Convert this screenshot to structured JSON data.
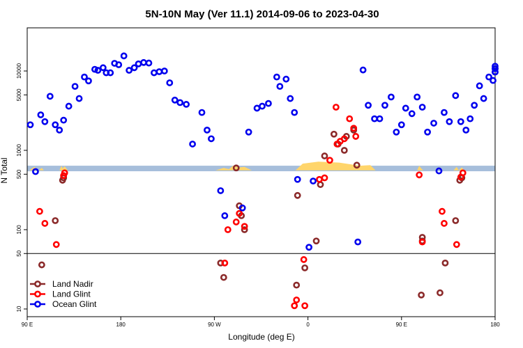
{
  "chart_data": {
    "type": "scatter",
    "title": "5N-10N May (Ver 11.1)   2014-09-06 to 2023-04-30",
    "xlabel": "Longitude (deg E)",
    "ylabel": "N Total",
    "x_ticks": [
      {
        "value": 90,
        "label": "90 E"
      },
      {
        "value": 180,
        "label": "180"
      },
      {
        "value": 270,
        "label": "90 W"
      },
      {
        "value": 360,
        "label": "0"
      },
      {
        "value": 450,
        "label": "90 E"
      },
      {
        "value": 540,
        "label": "180"
      }
    ],
    "y_ticks": [
      10,
      50,
      100,
      500,
      1000,
      5000,
      10000
    ],
    "xlim": [
      90,
      540
    ],
    "ylim_log": [
      8,
      35000
    ],
    "reference_line_y": 50,
    "land_band_y": [
      545,
      640
    ],
    "grid": false,
    "legend_placement": "bottom-left",
    "colors": {
      "land_nadir": "#8b2a2a",
      "land_glint": "#ff0000",
      "ocean_glint": "#0000ee",
      "ocean_band": "#a6bedb",
      "land_fill": "#ffd56b"
    },
    "series": [
      {
        "name": "Land Nadir",
        "color": "#8b2a2a",
        "points": [
          [
            104,
            36
          ],
          [
            117,
            130
          ],
          [
            124,
            420
          ],
          [
            125,
            450
          ],
          [
            276,
            38
          ],
          [
            279,
            25
          ],
          [
            291,
            600
          ],
          [
            294,
            200
          ],
          [
            296,
            150
          ],
          [
            299,
            100
          ],
          [
            349,
            20
          ],
          [
            350,
            270
          ],
          [
            357,
            33
          ],
          [
            368,
            72
          ],
          [
            372,
            370
          ],
          [
            376,
            850
          ],
          [
            385,
            1600
          ],
          [
            389,
            1200
          ],
          [
            395,
            1000
          ],
          [
            397,
            1500
          ],
          [
            404,
            1800
          ],
          [
            407,
            650
          ],
          [
            469,
            15
          ],
          [
            470,
            72
          ],
          [
            470,
            80
          ],
          [
            487,
            16
          ],
          [
            492,
            38
          ],
          [
            502,
            130
          ],
          [
            506,
            420
          ],
          [
            508,
            450
          ]
        ]
      },
      {
        "name": "Land Glint",
        "color": "#ff0000",
        "points": [
          [
            102,
            170
          ],
          [
            107,
            120
          ],
          [
            118,
            65
          ],
          [
            125,
            480
          ],
          [
            126,
            520
          ],
          [
            280,
            38
          ],
          [
            283,
            100
          ],
          [
            291,
            125
          ],
          [
            294,
            160
          ],
          [
            299,
            110
          ],
          [
            347,
            11
          ],
          [
            349,
            13
          ],
          [
            356,
            42
          ],
          [
            357,
            11
          ],
          [
            371,
            430
          ],
          [
            376,
            450
          ],
          [
            381,
            750
          ],
          [
            387,
            3500
          ],
          [
            388,
            1200
          ],
          [
            391,
            1300
          ],
          [
            395,
            1400
          ],
          [
            400,
            2500
          ],
          [
            404,
            1900
          ],
          [
            406,
            1500
          ],
          [
            467,
            490
          ],
          [
            470,
            70
          ],
          [
            489,
            170
          ],
          [
            491,
            120
          ],
          [
            503,
            65
          ],
          [
            507,
            460
          ],
          [
            509,
            520
          ]
        ]
      },
      {
        "name": "Ocean Glint",
        "color": "#0000ee",
        "points": [
          [
            93,
            2100
          ],
          [
            98,
            540
          ],
          [
            103,
            2800
          ],
          [
            107,
            2300
          ],
          [
            112,
            4800
          ],
          [
            117,
            2100
          ],
          [
            121,
            1800
          ],
          [
            125,
            2400
          ],
          [
            130,
            3600
          ],
          [
            136,
            6400
          ],
          [
            140,
            4500
          ],
          [
            145,
            8400
          ],
          [
            149,
            7500
          ],
          [
            155,
            10500
          ],
          [
            158,
            10200
          ],
          [
            163,
            11000
          ],
          [
            166,
            9500
          ],
          [
            170,
            9500
          ],
          [
            174,
            12500
          ],
          [
            178,
            12000
          ],
          [
            183,
            15500
          ],
          [
            188,
            10200
          ],
          [
            193,
            11000
          ],
          [
            197,
            12300
          ],
          [
            202,
            12800
          ],
          [
            207,
            12600
          ],
          [
            212,
            9500
          ],
          [
            217,
            9800
          ],
          [
            222,
            10000
          ],
          [
            227,
            7100
          ],
          [
            232,
            4300
          ],
          [
            237,
            4000
          ],
          [
            243,
            3800
          ],
          [
            249,
            1200
          ],
          [
            258,
            3000
          ],
          [
            263,
            1800
          ],
          [
            267,
            1400
          ],
          [
            276,
            310
          ],
          [
            280,
            150
          ],
          [
            297,
            188
          ],
          [
            303,
            1700
          ],
          [
            311,
            3400
          ],
          [
            316,
            3600
          ],
          [
            322,
            3900
          ],
          [
            330,
            8400
          ],
          [
            333,
            6400
          ],
          [
            339,
            7900
          ],
          [
            343,
            4500
          ],
          [
            347,
            3000
          ],
          [
            350,
            430
          ],
          [
            361,
            60
          ],
          [
            365,
            410
          ],
          [
            408,
            70
          ],
          [
            413,
            10300
          ],
          [
            418,
            3700
          ],
          [
            424,
            2500
          ],
          [
            429,
            2500
          ],
          [
            434,
            3700
          ],
          [
            440,
            4700
          ],
          [
            445,
            1700
          ],
          [
            450,
            2100
          ],
          [
            454,
            3400
          ],
          [
            460,
            2900
          ],
          [
            465,
            4700
          ],
          [
            470,
            3500
          ],
          [
            475,
            1700
          ],
          [
            481,
            2200
          ],
          [
            486,
            550
          ],
          [
            491,
            3000
          ],
          [
            496,
            2300
          ],
          [
            502,
            4900
          ],
          [
            507,
            2300
          ],
          [
            512,
            1800
          ],
          [
            516,
            2500
          ],
          [
            520,
            3700
          ],
          [
            525,
            6500
          ],
          [
            529,
            4500
          ],
          [
            534,
            8400
          ],
          [
            538,
            7600
          ],
          [
            544,
            10700
          ],
          [
            548,
            10700
          ],
          [
            552,
            11500
          ],
          [
            556,
            9700
          ],
          [
            560,
            9700
          ]
        ]
      }
    ],
    "land_segments": [
      {
        "x": [
          92,
          97,
          101,
          104,
          106
        ],
        "y": [
          560,
          620,
          560,
          600,
          560
        ]
      },
      {
        "x": [
          121,
          123,
          124,
          126,
          129
        ],
        "y": [
          560,
          640,
          590,
          630,
          560
        ]
      },
      {
        "x": [
          271,
          279,
          284,
          288,
          294,
          299,
          306
        ],
        "y": [
          560,
          600,
          580,
          640,
          610,
          620,
          560
        ]
      },
      {
        "x": [
          348,
          355,
          370,
          390,
          410,
          420,
          425
        ],
        "y": [
          560,
          680,
          720,
          700,
          640,
          650,
          560
        ]
      },
      {
        "x": [
          465,
          467,
          469,
          471
        ],
        "y": [
          560,
          640,
          590,
          560
        ]
      },
      {
        "x": [
          500,
          503,
          505,
          508,
          510
        ],
        "y": [
          560,
          620,
          560,
          610,
          560
        ]
      }
    ]
  }
}
